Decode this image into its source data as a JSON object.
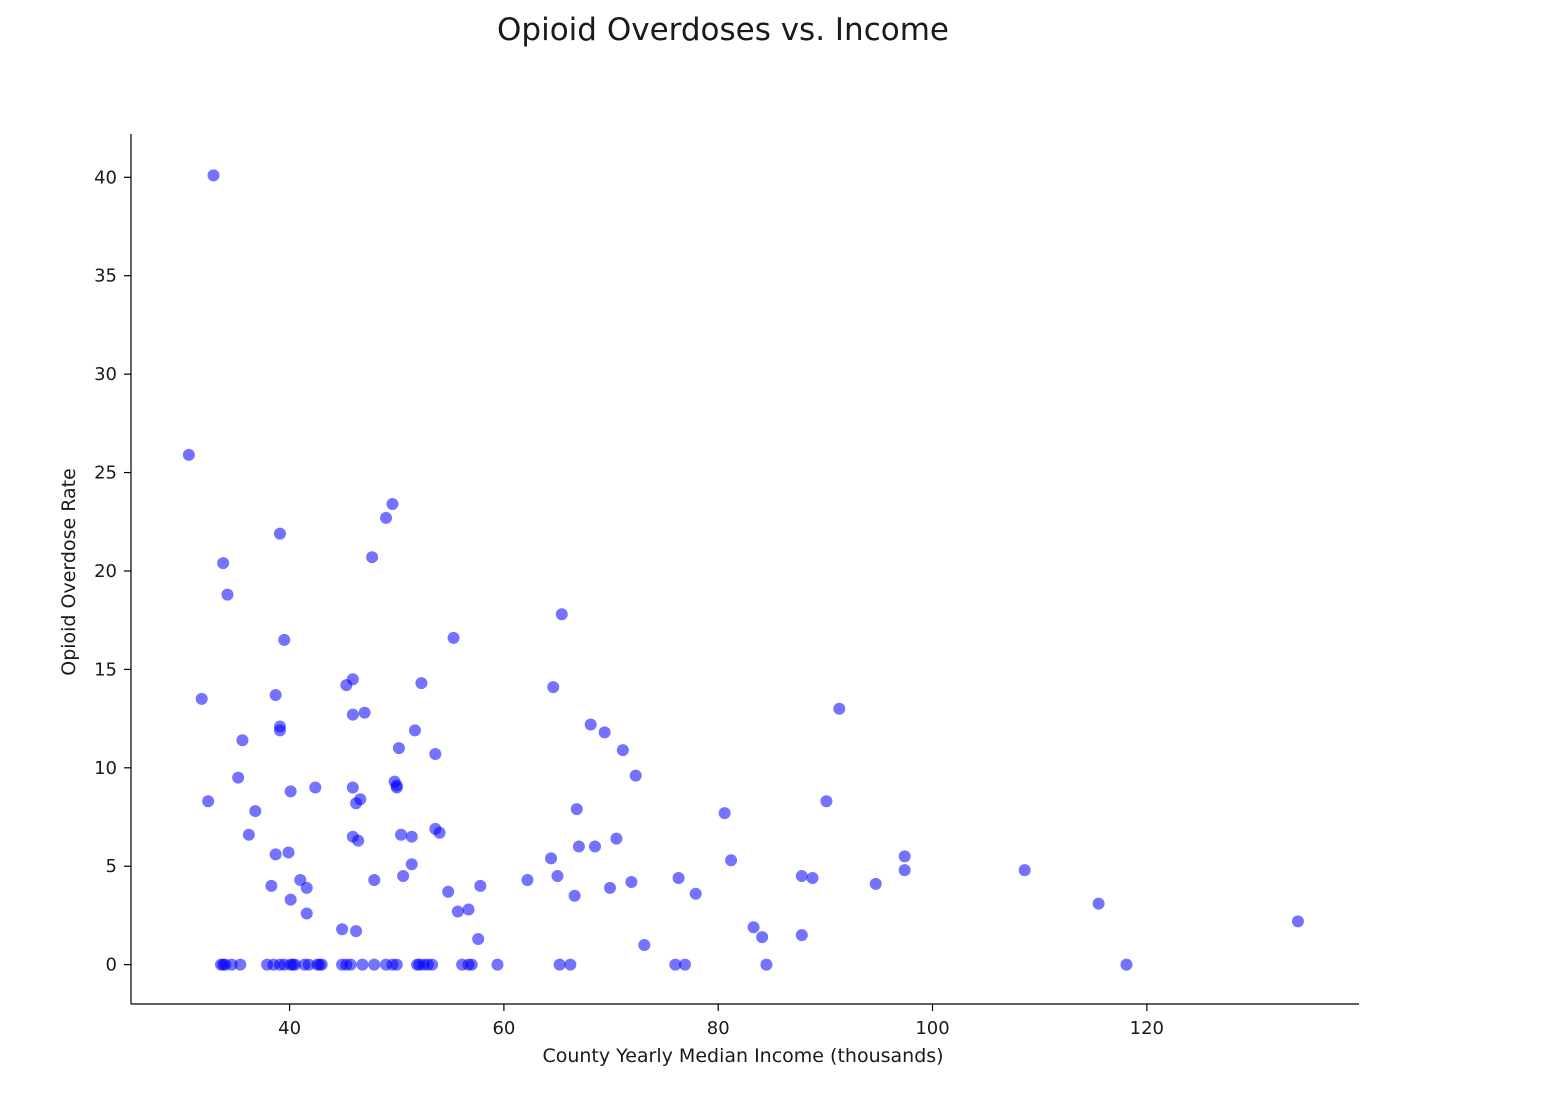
{
  "chart_data": {
    "type": "scatter",
    "title": "Opioid Overdoses vs. Income",
    "xlabel": "County Yearly Median Income (thousands)",
    "ylabel": "Opioid Overdose Rate",
    "xlim": [
      25.2,
      139.8
    ],
    "ylim": [
      -2.0,
      42.2
    ],
    "xticks": [
      40,
      60,
      80,
      100,
      120
    ],
    "yticks": [
      0,
      5,
      10,
      15,
      20,
      25,
      30,
      35,
      40
    ],
    "grid": false,
    "legend": "none",
    "marker_color": "#0000ff",
    "marker_alpha": 0.55,
    "spines": [
      "left",
      "bottom"
    ],
    "points": [
      [
        32.9,
        40.1
      ],
      [
        30.6,
        25.9
      ],
      [
        33.8,
        20.4
      ],
      [
        34.2,
        18.8
      ],
      [
        31.8,
        13.5
      ],
      [
        35.6,
        11.4
      ],
      [
        35.2,
        9.5
      ],
      [
        32.4,
        8.3
      ],
      [
        36.8,
        7.8
      ],
      [
        36.2,
        6.6
      ],
      [
        39.1,
        21.9
      ],
      [
        39.5,
        16.5
      ],
      [
        38.7,
        13.7
      ],
      [
        39.1,
        12.1
      ],
      [
        39.1,
        11.9
      ],
      [
        40.1,
        8.8
      ],
      [
        38.7,
        5.6
      ],
      [
        39.9,
        5.7
      ],
      [
        38.3,
        4.0
      ],
      [
        41.0,
        4.3
      ],
      [
        41.6,
        3.9
      ],
      [
        40.1,
        3.3
      ],
      [
        41.6,
        2.6
      ],
      [
        42.4,
        9.0
      ],
      [
        49.6,
        23.4
      ],
      [
        49.0,
        22.7
      ],
      [
        47.7,
        20.7
      ],
      [
        45.9,
        14.5
      ],
      [
        45.3,
        14.2
      ],
      [
        45.9,
        12.7
      ],
      [
        47.0,
        12.8
      ],
      [
        52.3,
        14.3
      ],
      [
        51.7,
        11.9
      ],
      [
        50.2,
        11.0
      ],
      [
        53.6,
        10.7
      ],
      [
        45.9,
        9.0
      ],
      [
        46.6,
        8.4
      ],
      [
        46.2,
        8.2
      ],
      [
        49.8,
        9.3
      ],
      [
        50.0,
        9.1
      ],
      [
        50.0,
        9.0
      ],
      [
        45.9,
        6.5
      ],
      [
        46.4,
        6.3
      ],
      [
        50.4,
        6.6
      ],
      [
        51.4,
        6.5
      ],
      [
        53.6,
        6.9
      ],
      [
        54.0,
        6.7
      ],
      [
        51.4,
        5.1
      ],
      [
        50.6,
        4.5
      ],
      [
        47.9,
        4.3
      ],
      [
        44.9,
        1.8
      ],
      [
        46.2,
        1.7
      ],
      [
        55.3,
        16.6
      ],
      [
        54.8,
        3.7
      ],
      [
        55.7,
        2.7
      ],
      [
        56.7,
        2.8
      ],
      [
        57.6,
        1.3
      ],
      [
        57.8,
        4.0
      ],
      [
        65.4,
        17.8
      ],
      [
        64.6,
        14.1
      ],
      [
        68.1,
        12.2
      ],
      [
        69.4,
        11.8
      ],
      [
        71.1,
        10.9
      ],
      [
        72.3,
        9.6
      ],
      [
        66.8,
        7.9
      ],
      [
        70.5,
        6.4
      ],
      [
        67.0,
        6.0
      ],
      [
        68.5,
        6.0
      ],
      [
        64.4,
        5.4
      ],
      [
        62.2,
        4.3
      ],
      [
        65.0,
        4.5
      ],
      [
        69.9,
        3.9
      ],
      [
        71.9,
        4.2
      ],
      [
        66.6,
        3.5
      ],
      [
        73.1,
        1.0
      ],
      [
        91.3,
        13.0
      ],
      [
        90.1,
        8.3
      ],
      [
        80.6,
        7.7
      ],
      [
        81.2,
        5.3
      ],
      [
        76.3,
        4.4
      ],
      [
        77.9,
        3.6
      ],
      [
        87.8,
        4.5
      ],
      [
        88.8,
        4.4
      ],
      [
        94.7,
        4.1
      ],
      [
        97.4,
        5.5
      ],
      [
        97.4,
        4.8
      ],
      [
        83.3,
        1.9
      ],
      [
        84.1,
        1.4
      ],
      [
        87.8,
        1.5
      ],
      [
        108.6,
        4.8
      ],
      [
        115.5,
        3.1
      ],
      [
        134.1,
        2.2
      ],
      [
        33.6,
        0
      ],
      [
        33.8,
        0
      ],
      [
        34.0,
        0
      ],
      [
        34.6,
        0
      ],
      [
        35.4,
        0
      ],
      [
        37.9,
        0
      ],
      [
        38.5,
        0
      ],
      [
        39.1,
        0
      ],
      [
        39.5,
        0
      ],
      [
        40.1,
        0
      ],
      [
        40.3,
        0
      ],
      [
        40.5,
        0
      ],
      [
        41.4,
        0
      ],
      [
        41.8,
        0
      ],
      [
        42.6,
        0
      ],
      [
        42.8,
        0
      ],
      [
        43.0,
        0
      ],
      [
        44.9,
        0
      ],
      [
        45.3,
        0
      ],
      [
        45.7,
        0
      ],
      [
        46.8,
        0
      ],
      [
        47.9,
        0
      ],
      [
        49.0,
        0
      ],
      [
        49.6,
        0
      ],
      [
        50.0,
        0
      ],
      [
        51.9,
        0
      ],
      [
        52.1,
        0
      ],
      [
        52.5,
        0
      ],
      [
        52.9,
        0
      ],
      [
        53.3,
        0
      ],
      [
        56.1,
        0
      ],
      [
        56.7,
        0
      ],
      [
        57.0,
        0
      ],
      [
        59.4,
        0
      ],
      [
        65.2,
        0
      ],
      [
        66.2,
        0
      ],
      [
        76.0,
        0
      ],
      [
        76.9,
        0
      ],
      [
        84.5,
        0
      ],
      [
        118.1,
        0
      ]
    ]
  }
}
